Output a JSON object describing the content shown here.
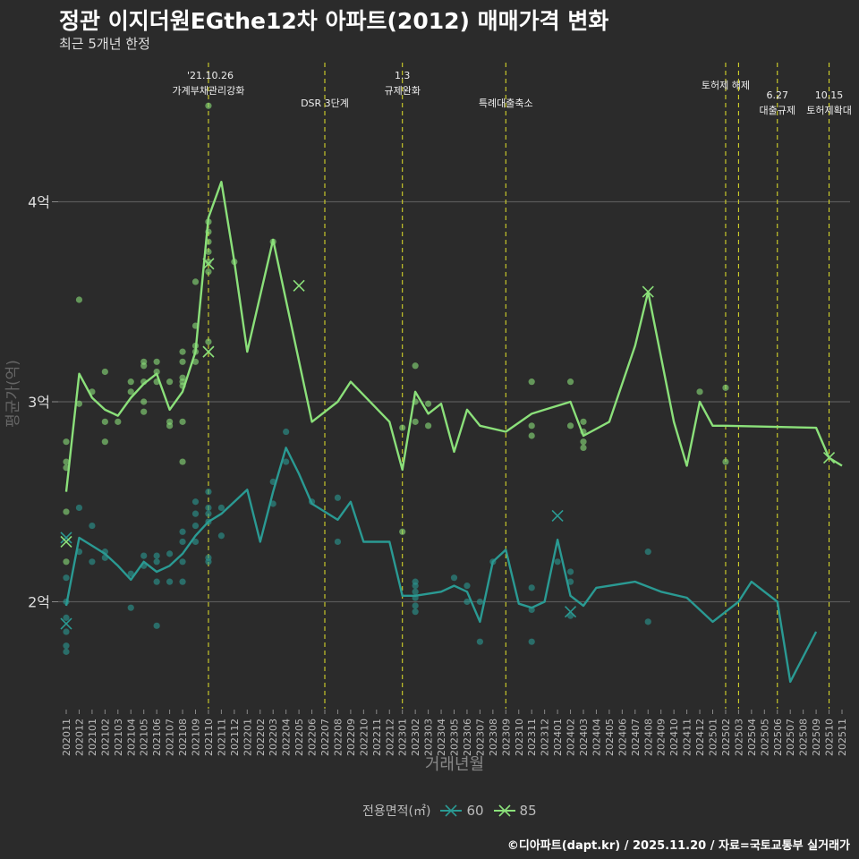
{
  "title": "정관 이지더원EGthe12차 아파트(2012) 매매가격 변화",
  "subtitle": "최근 5개년 한정",
  "caption": "©디아파트(dapt.kr) / 2025.11.20 / 자료=국토교통부 실거래가",
  "legend": {
    "title": "전용면적(㎡)",
    "items": [
      {
        "label": "60",
        "color": "#2a9a93"
      },
      {
        "label": "85",
        "color": "#8be07a"
      }
    ]
  },
  "chart_data": {
    "type": "line",
    "xlabel": "거래년월",
    "ylabel": "평균가(억)",
    "ylim": [
      1.45,
      4.5
    ],
    "yticks": [
      {
        "value": 2,
        "label": "2억"
      },
      {
        "value": 3,
        "label": "3억"
      },
      {
        "value": 4,
        "label": "4억"
      }
    ],
    "categories": [
      "202011",
      "202012",
      "202101",
      "202102",
      "202103",
      "202104",
      "202105",
      "202106",
      "202107",
      "202108",
      "202109",
      "202110",
      "202111",
      "202112",
      "202201",
      "202202",
      "202203",
      "202204",
      "202205",
      "202206",
      "202207",
      "202208",
      "202209",
      "202210",
      "202211",
      "202212",
      "202301",
      "202302",
      "202303",
      "202304",
      "202305",
      "202306",
      "202307",
      "202308",
      "202309",
      "202310",
      "202311",
      "202312",
      "202401",
      "202402",
      "202403",
      "202404",
      "202405",
      "202406",
      "202407",
      "202408",
      "202409",
      "202410",
      "202411",
      "202412",
      "202501",
      "202502",
      "202503",
      "202504",
      "202505",
      "202506",
      "202507",
      "202508",
      "202509",
      "202510",
      "202511"
    ],
    "annotations": [
      {
        "month": "202110",
        "lines": [
          "'21.10.26",
          "가계부채관리강화"
        ]
      },
      {
        "month": "202207",
        "lines": [
          "DSR 3단계"
        ]
      },
      {
        "month": "202301",
        "lines": [
          "1.3",
          "규제완화"
        ]
      },
      {
        "month": "202309",
        "lines": [
          "특례대출축소"
        ]
      },
      {
        "month": "202502",
        "lines": [
          "토허제 해제"
        ]
      },
      {
        "month": "202503",
        "lines": [
          ""
        ]
      },
      {
        "month": "202506",
        "lines": [
          "6.27",
          "대출규제"
        ]
      },
      {
        "month": "202510",
        "lines": [
          "10.15",
          "토허제확대"
        ]
      }
    ],
    "series": [
      {
        "name": "60",
        "color": "#2a9a93",
        "line": [
          [
            "202011",
            1.98
          ],
          [
            "202012",
            2.32
          ],
          [
            "202101",
            2.28
          ],
          [
            "202102",
            2.24
          ],
          [
            "202103",
            2.18
          ],
          [
            "202104",
            2.11
          ],
          [
            "202105",
            2.2
          ],
          [
            "202106",
            2.15
          ],
          [
            "202107",
            2.18
          ],
          [
            "202108",
            2.24
          ],
          [
            "202109",
            2.33
          ],
          [
            "202110",
            2.4
          ],
          [
            "202111",
            2.44
          ],
          [
            "202112",
            2.5
          ],
          [
            "202201",
            2.56
          ],
          [
            "202202",
            2.3
          ],
          [
            "202203",
            2.55
          ],
          [
            "202204",
            2.77
          ],
          [
            "202205",
            2.64
          ],
          [
            "202206",
            2.49
          ],
          [
            "202207",
            2.45
          ],
          [
            "202208",
            2.41
          ],
          [
            "202209",
            2.5
          ],
          [
            "202210",
            2.3
          ],
          [
            "202212",
            2.3
          ],
          [
            "202301",
            2.03
          ],
          [
            "202302",
            2.03
          ],
          [
            "202304",
            2.05
          ],
          [
            "202305",
            2.08
          ],
          [
            "202306",
            2.05
          ],
          [
            "202307",
            1.9
          ],
          [
            "202308",
            2.2
          ],
          [
            "202309",
            2.26
          ],
          [
            "202310",
            1.99
          ],
          [
            "202311",
            1.97
          ],
          [
            "202312",
            2.0
          ],
          [
            "202401",
            2.31
          ],
          [
            "202402",
            2.03
          ],
          [
            "202403",
            1.98
          ],
          [
            "202404",
            2.07
          ],
          [
            "202407",
            2.1
          ],
          [
            "202409",
            2.05
          ],
          [
            "202411",
            2.02
          ],
          [
            "202501",
            1.9
          ],
          [
            "202503",
            2.0
          ],
          [
            "202504",
            2.1
          ],
          [
            "202506",
            2.0
          ],
          [
            "202507",
            1.6
          ],
          [
            "202509",
            1.85
          ]
        ],
        "points": [
          [
            "202011",
            1.75
          ],
          [
            "202011",
            1.78
          ],
          [
            "202011",
            1.85
          ],
          [
            "202011",
            1.92
          ],
          [
            "202011",
            2.0
          ],
          [
            "202011",
            2.12
          ],
          [
            "202012",
            2.47
          ],
          [
            "202012",
            2.25
          ],
          [
            "202101",
            2.38
          ],
          [
            "202101",
            2.2
          ],
          [
            "202102",
            2.22
          ],
          [
            "202102",
            2.25
          ],
          [
            "202104",
            2.14
          ],
          [
            "202104",
            1.97
          ],
          [
            "202105",
            2.23
          ],
          [
            "202105",
            2.18
          ],
          [
            "202106",
            2.23
          ],
          [
            "202106",
            2.1
          ],
          [
            "202106",
            1.88
          ],
          [
            "202106",
            2.2
          ],
          [
            "202107",
            2.24
          ],
          [
            "202107",
            2.1
          ],
          [
            "202108",
            2.35
          ],
          [
            "202108",
            2.3
          ],
          [
            "202108",
            2.2
          ],
          [
            "202108",
            2.1
          ],
          [
            "202109",
            2.5
          ],
          [
            "202109",
            2.44
          ],
          [
            "202109",
            2.38
          ],
          [
            "202109",
            2.3
          ],
          [
            "202110",
            2.55
          ],
          [
            "202110",
            2.47
          ],
          [
            "202110",
            2.44
          ],
          [
            "202110",
            2.4
          ],
          [
            "202110",
            2.22
          ],
          [
            "202110",
            2.2
          ],
          [
            "202111",
            2.47
          ],
          [
            "202111",
            2.33
          ],
          [
            "202203",
            2.6
          ],
          [
            "202203",
            2.49
          ],
          [
            "202204",
            2.85
          ],
          [
            "202204",
            2.7
          ],
          [
            "202206",
            2.5
          ],
          [
            "202208",
            2.52
          ],
          [
            "202208",
            2.3
          ],
          [
            "202302",
            2.1
          ],
          [
            "202302",
            2.08
          ],
          [
            "202302",
            2.05
          ],
          [
            "202302",
            2.02
          ],
          [
            "202302",
            1.98
          ],
          [
            "202302",
            1.95
          ],
          [
            "202305",
            2.12
          ],
          [
            "202306",
            2.08
          ],
          [
            "202306",
            2.0
          ],
          [
            "202307",
            2.0
          ],
          [
            "202307",
            1.8
          ],
          [
            "202308",
            2.2
          ],
          [
            "202311",
            2.07
          ],
          [
            "202311",
            1.96
          ],
          [
            "202311",
            1.8
          ],
          [
            "202401",
            2.2
          ],
          [
            "202402",
            2.15
          ],
          [
            "202402",
            2.1
          ],
          [
            "202402",
            1.93
          ],
          [
            "202408",
            2.25
          ],
          [
            "202408",
            1.9
          ]
        ],
        "crosses": [
          [
            "202011",
            2.32
          ],
          [
            "202011",
            1.89
          ],
          [
            "202401",
            2.43
          ],
          [
            "202402",
            1.95
          ]
        ]
      },
      {
        "name": "85",
        "color": "#8be07a",
        "line": [
          [
            "202011",
            2.55
          ],
          [
            "202012",
            3.14
          ],
          [
            "202101",
            3.02
          ],
          [
            "202102",
            2.96
          ],
          [
            "202103",
            2.93
          ],
          [
            "202104",
            3.02
          ],
          [
            "202105",
            3.09
          ],
          [
            "202106",
            3.14
          ],
          [
            "202107",
            2.96
          ],
          [
            "202108",
            3.05
          ],
          [
            "202109",
            3.25
          ],
          [
            "202110",
            3.92
          ],
          [
            "202111",
            4.1
          ],
          [
            "202112",
            3.7
          ],
          [
            "202201",
            3.25
          ],
          [
            "202203",
            3.81
          ],
          [
            "202206",
            2.9
          ],
          [
            "202208",
            3.0
          ],
          [
            "202209",
            3.1
          ],
          [
            "202212",
            2.9
          ],
          [
            "202301",
            2.66
          ],
          [
            "202302",
            3.05
          ],
          [
            "202303",
            2.94
          ],
          [
            "202304",
            2.99
          ],
          [
            "202305",
            2.75
          ],
          [
            "202306",
            2.96
          ],
          [
            "202307",
            2.88
          ],
          [
            "202309",
            2.85
          ],
          [
            "202311",
            2.94
          ],
          [
            "202312",
            2.96
          ],
          [
            "202402",
            3.0
          ],
          [
            "202403",
            2.83
          ],
          [
            "202405",
            2.9
          ],
          [
            "202407",
            3.28
          ],
          [
            "202408",
            3.55
          ],
          [
            "202410",
            2.9
          ],
          [
            "202411",
            2.68
          ],
          [
            "202412",
            3.0
          ],
          [
            "202501",
            2.88
          ],
          [
            "202502",
            2.88
          ],
          [
            "202509",
            2.87
          ],
          [
            "202510",
            2.72
          ],
          [
            "202511",
            2.68
          ]
        ],
        "points": [
          [
            "202011",
            2.8
          ],
          [
            "202011",
            2.7
          ],
          [
            "202011",
            2.67
          ],
          [
            "202011",
            2.45
          ],
          [
            "202011",
            2.2
          ],
          [
            "202012",
            3.51
          ],
          [
            "202012",
            2.99
          ],
          [
            "202101",
            3.05
          ],
          [
            "202102",
            3.15
          ],
          [
            "202102",
            2.9
          ],
          [
            "202102",
            2.8
          ],
          [
            "202103",
            2.9
          ],
          [
            "202104",
            3.1
          ],
          [
            "202104",
            3.05
          ],
          [
            "202105",
            3.2
          ],
          [
            "202105",
            3.18
          ],
          [
            "202105",
            3.1
          ],
          [
            "202105",
            3.0
          ],
          [
            "202105",
            2.95
          ],
          [
            "202106",
            3.2
          ],
          [
            "202106",
            3.15
          ],
          [
            "202106",
            3.1
          ],
          [
            "202107",
            3.1
          ],
          [
            "202107",
            2.9
          ],
          [
            "202107",
            2.88
          ],
          [
            "202108",
            3.25
          ],
          [
            "202108",
            3.2
          ],
          [
            "202108",
            3.12
          ],
          [
            "202108",
            3.1
          ],
          [
            "202108",
            3.08
          ],
          [
            "202108",
            2.9
          ],
          [
            "202108",
            2.7
          ],
          [
            "202109",
            3.6
          ],
          [
            "202109",
            3.38
          ],
          [
            "202109",
            3.28
          ],
          [
            "202109",
            3.25
          ],
          [
            "202109",
            3.2
          ],
          [
            "202110",
            4.48
          ],
          [
            "202110",
            3.9
          ],
          [
            "202110",
            3.85
          ],
          [
            "202110",
            3.8
          ],
          [
            "202110",
            3.75
          ],
          [
            "202110",
            3.7
          ],
          [
            "202110",
            3.65
          ],
          [
            "202110",
            3.3
          ],
          [
            "202112",
            3.7
          ],
          [
            "202203",
            3.8
          ],
          [
            "202301",
            2.87
          ],
          [
            "202301",
            2.35
          ],
          [
            "202302",
            3.18
          ],
          [
            "202302",
            3.0
          ],
          [
            "202302",
            2.9
          ],
          [
            "202303",
            2.99
          ],
          [
            "202303",
            2.88
          ],
          [
            "202311",
            3.1
          ],
          [
            "202311",
            2.88
          ],
          [
            "202311",
            2.83
          ],
          [
            "202402",
            3.1
          ],
          [
            "202402",
            2.88
          ],
          [
            "202403",
            2.9
          ],
          [
            "202403",
            2.85
          ],
          [
            "202403",
            2.8
          ],
          [
            "202403",
            2.77
          ],
          [
            "202412",
            3.05
          ],
          [
            "202502",
            3.07
          ],
          [
            "202502",
            2.7
          ]
        ],
        "crosses": [
          [
            "202011",
            2.3
          ],
          [
            "202110",
            3.69
          ],
          [
            "202110",
            3.25
          ],
          [
            "202205",
            3.58
          ],
          [
            "202408",
            3.55
          ],
          [
            "202510",
            2.72
          ]
        ]
      }
    ]
  }
}
